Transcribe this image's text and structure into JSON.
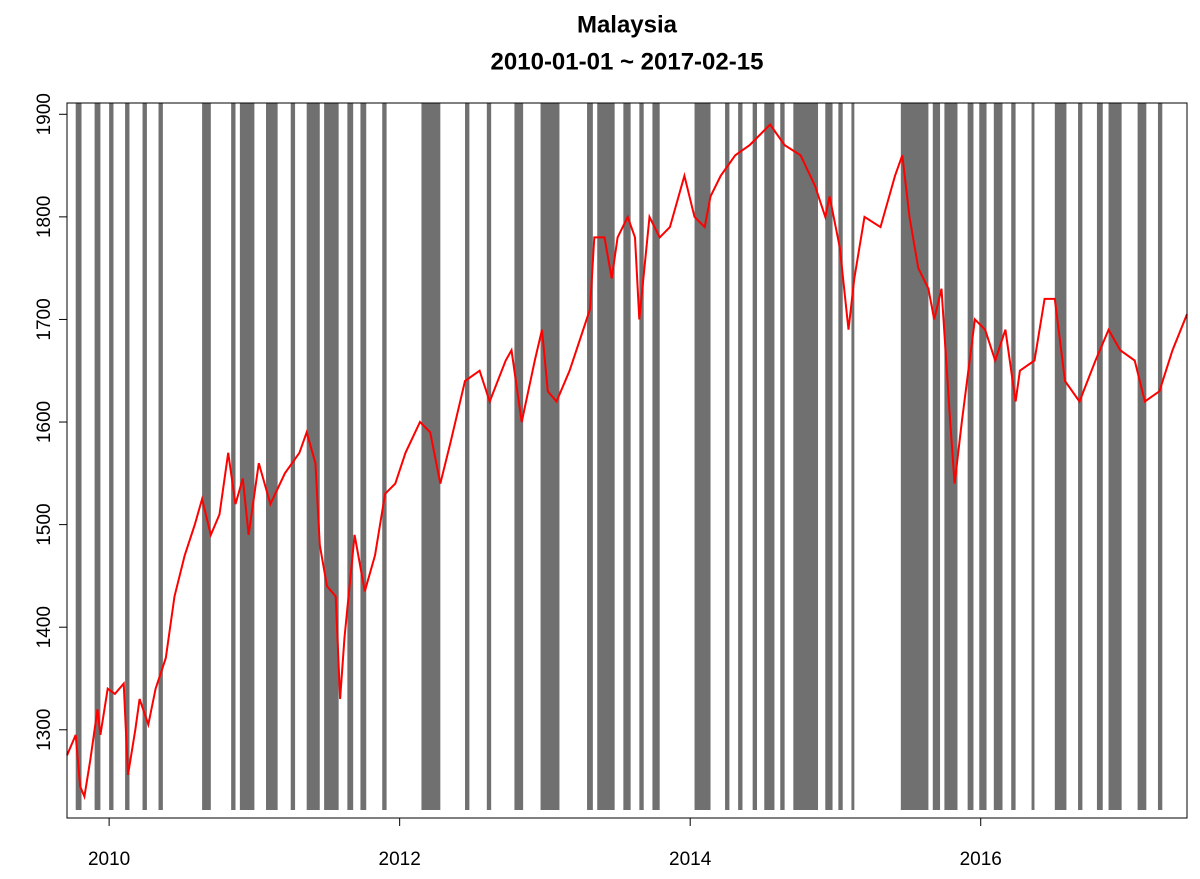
{
  "chart_data": {
    "type": "line",
    "title": "Malaysia",
    "subtitle": "2010-01-01 ~ 2017-02-15",
    "xlim": [
      2009.71,
      2017.42
    ],
    "xticks": [
      2010,
      2012,
      2014,
      2016
    ],
    "ylim": [
      1214,
      1911
    ],
    "yticks": [
      1300,
      1400,
      1500,
      1600,
      1700,
      1800,
      1900
    ],
    "shading": {
      "color": "#707070",
      "intervals": [
        [
          2009.77,
          2009.81
        ],
        [
          2009.9,
          2009.94
        ],
        [
          2010.0,
          2010.03
        ],
        [
          2010.11,
          2010.14
        ],
        [
          2010.23,
          2010.26
        ],
        [
          2010.34,
          2010.37
        ],
        [
          2010.64,
          2010.7
        ],
        [
          2010.84,
          2010.87
        ],
        [
          2010.9,
          2011.0
        ],
        [
          2011.08,
          2011.16
        ],
        [
          2011.25,
          2011.28
        ],
        [
          2011.36,
          2011.45
        ],
        [
          2011.48,
          2011.58
        ],
        [
          2011.64,
          2011.68
        ],
        [
          2011.73,
          2011.77
        ],
        [
          2011.88,
          2011.91
        ],
        [
          2012.15,
          2012.28
        ],
        [
          2012.45,
          2012.48
        ],
        [
          2012.6,
          2012.63
        ],
        [
          2012.79,
          2012.85
        ],
        [
          2012.97,
          2013.1
        ],
        [
          2013.29,
          2013.33
        ],
        [
          2013.36,
          2013.48
        ],
        [
          2013.54,
          2013.59
        ],
        [
          2013.65,
          2013.68
        ],
        [
          2013.74,
          2013.79
        ],
        [
          2014.03,
          2014.14
        ],
        [
          2014.24,
          2014.27
        ],
        [
          2014.33,
          2014.36
        ],
        [
          2014.43,
          2014.46
        ],
        [
          2014.51,
          2014.58
        ],
        [
          2014.62,
          2014.65
        ],
        [
          2014.71,
          2014.88
        ],
        [
          2014.93,
          2014.98
        ],
        [
          2015.02,
          2015.05
        ],
        [
          2015.11,
          2015.13
        ],
        [
          2015.45,
          2015.64
        ],
        [
          2015.67,
          2015.72
        ],
        [
          2015.75,
          2015.84
        ],
        [
          2015.91,
          2015.95
        ],
        [
          2015.99,
          2016.04
        ],
        [
          2016.09,
          2016.15
        ],
        [
          2016.21,
          2016.24
        ],
        [
          2016.35,
          2016.37
        ],
        [
          2016.51,
          2016.59
        ],
        [
          2016.67,
          2016.7
        ],
        [
          2016.8,
          2016.84
        ],
        [
          2016.88,
          2016.97
        ],
        [
          2017.08,
          2017.14
        ],
        [
          2017.22,
          2017.25
        ]
      ]
    },
    "series": [
      {
        "name": "Malaysia",
        "color": "#ff0000",
        "x": [
          2009.71,
          2009.77,
          2009.8,
          2009.83,
          2009.87,
          2009.92,
          2009.94,
          2009.99,
          2010.04,
          2010.1,
          2010.13,
          2010.18,
          2010.21,
          2010.27,
          2010.32,
          2010.39,
          2010.45,
          2010.52,
          2010.59,
          2010.64,
          2010.7,
          2010.76,
          2010.82,
          2010.87,
          2010.92,
          2010.96,
          2011.03,
          2011.11,
          2011.21,
          2011.31,
          2011.36,
          2011.42,
          2011.45,
          2011.5,
          2011.56,
          2011.59,
          2011.62,
          2011.69,
          2011.76,
          2011.83,
          2011.9,
          2011.97,
          2012.04,
          2012.14,
          2012.21,
          2012.28,
          2012.35,
          2012.45,
          2012.55,
          2012.62,
          2012.73,
          2012.77,
          2012.84,
          2012.93,
          2012.98,
          2013.02,
          2013.08,
          2013.17,
          2013.24,
          2013.31,
          2013.34,
          2013.41,
          2013.46,
          2013.5,
          2013.57,
          2013.62,
          2013.65,
          2013.72,
          2013.79,
          2013.86,
          2013.96,
          2014.03,
          2014.1,
          2014.14,
          2014.21,
          2014.31,
          2014.41,
          2014.55,
          2014.65,
          2014.76,
          2014.86,
          2014.93,
          2014.96,
          2015.03,
          2015.09,
          2015.13,
          2015.2,
          2015.31,
          2015.41,
          2015.46,
          2015.51,
          2015.57,
          2015.64,
          2015.68,
          2015.73,
          2015.79,
          2015.82,
          2015.87,
          2015.96,
          2016.03,
          2016.1,
          2016.17,
          2016.24,
          2016.27,
          2016.37,
          2016.44,
          2016.51,
          2016.58,
          2016.68,
          2016.79,
          2016.88,
          2016.96,
          2017.06,
          2017.13,
          2017.23,
          2017.32,
          2017.42
        ],
        "values": [
          1275,
          1295,
          1245,
          1235,
          1270,
          1320,
          1295,
          1340,
          1335,
          1345,
          1256,
          1300,
          1330,
          1305,
          1340,
          1370,
          1430,
          1470,
          1500,
          1525,
          1490,
          1510,
          1570,
          1520,
          1545,
          1490,
          1560,
          1520,
          1550,
          1570,
          1590,
          1560,
          1480,
          1440,
          1430,
          1330,
          1390,
          1490,
          1435,
          1470,
          1530,
          1540,
          1570,
          1600,
          1590,
          1540,
          1580,
          1640,
          1650,
          1620,
          1660,
          1670,
          1600,
          1660,
          1690,
          1630,
          1620,
          1650,
          1680,
          1710,
          1780,
          1780,
          1740,
          1780,
          1800,
          1780,
          1700,
          1800,
          1780,
          1790,
          1840,
          1800,
          1790,
          1820,
          1840,
          1860,
          1870,
          1890,
          1870,
          1860,
          1830,
          1800,
          1820,
          1770,
          1690,
          1740,
          1800,
          1790,
          1840,
          1860,
          1800,
          1750,
          1730,
          1700,
          1730,
          1600,
          1540,
          1600,
          1700,
          1690,
          1660,
          1690,
          1620,
          1650,
          1660,
          1720,
          1720,
          1640,
          1620,
          1660,
          1690,
          1670,
          1660,
          1620,
          1630,
          1670,
          1705
        ]
      }
    ]
  }
}
